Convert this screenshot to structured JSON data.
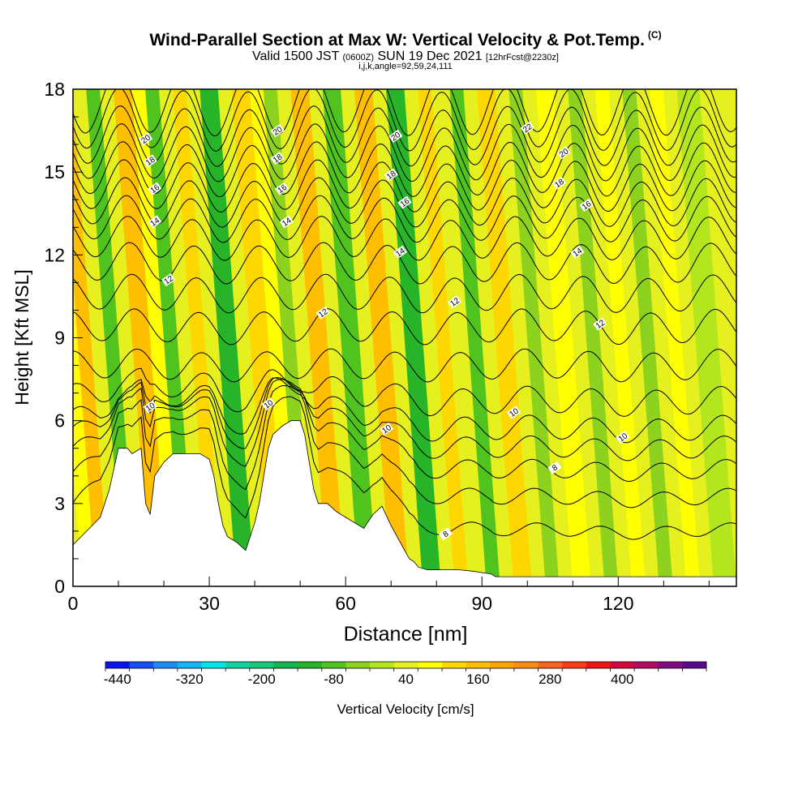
{
  "header": {
    "title": "Wind-Parallel Section at Max W: Vertical Velocity & Pot.Temp.",
    "title_corner": "(C)",
    "subtitle_prefix": "Valid 1500 JST",
    "subtitle_zulu": "(0600Z)",
    "subtitle_date": "SUN 19 Dec 2021",
    "subtitle_forecast": "[12hrFcst@2230z]",
    "params": "i,j,k,angle=92,59,24,111"
  },
  "chart_data": {
    "type": "heatmap",
    "xlabel": "Distance [nm]",
    "ylabel": "Height [Kft MSL]",
    "xlim": [
      0,
      146
    ],
    "ylim": [
      0,
      18
    ],
    "x_ticks": [
      0,
      30,
      60,
      90,
      120
    ],
    "y_ticks": [
      0,
      3,
      6,
      9,
      12,
      15,
      18
    ],
    "colorbar": {
      "label": "Vertical Velocity [cm/s]",
      "tick_labels": [
        "-440",
        "-320",
        "-200",
        "-80",
        "40",
        "160",
        "280",
        "400"
      ],
      "colors": [
        "#0a14f0",
        "#1450f5",
        "#1e8cf5",
        "#14b4f5",
        "#00e6e6",
        "#14d2a0",
        "#14c878",
        "#14b450",
        "#28b428",
        "#50c31e",
        "#8cd21e",
        "#b4e61e",
        "#e6f01e",
        "#ffff00",
        "#ffd700",
        "#ffbe00",
        "#ffa500",
        "#ff8c14",
        "#ff641e",
        "#ff3c14",
        "#f01414",
        "#d20a3c",
        "#b40a64",
        "#820a82",
        "#5a0a8c"
      ]
    },
    "velocity_bands": [
      {
        "x_from": 0,
        "x_to": 3,
        "value": 40
      },
      {
        "x_from": 3,
        "x_to": 6,
        "value": 70
      },
      {
        "x_from": 6,
        "x_to": 9,
        "value": 130
      },
      {
        "x_from": 9,
        "x_to": 12,
        "value": 10
      },
      {
        "x_from": 12,
        "x_to": 15,
        "value": -90
      },
      {
        "x_from": 15,
        "x_to": 18,
        "value": 40
      },
      {
        "x_from": 18,
        "x_to": 22,
        "value": 160
      },
      {
        "x_from": 22,
        "x_to": 25,
        "value": 60
      },
      {
        "x_from": 25,
        "x_to": 28,
        "value": -100
      },
      {
        "x_from": 28,
        "x_to": 31,
        "value": 30
      },
      {
        "x_from": 31,
        "x_to": 34,
        "value": 100
      },
      {
        "x_from": 34,
        "x_to": 37,
        "value": 40
      },
      {
        "x_from": 37,
        "x_to": 41,
        "value": -120
      },
      {
        "x_from": 41,
        "x_to": 44,
        "value": 30
      },
      {
        "x_from": 44,
        "x_to": 48,
        "value": 120
      },
      {
        "x_from": 48,
        "x_to": 51,
        "value": 50
      },
      {
        "x_from": 51,
        "x_to": 54,
        "value": -60
      },
      {
        "x_from": 54,
        "x_to": 57,
        "value": 40
      },
      {
        "x_from": 57,
        "x_to": 61,
        "value": 150
      },
      {
        "x_from": 61,
        "x_to": 64,
        "value": 40
      },
      {
        "x_from": 64,
        "x_to": 68,
        "value": -110
      },
      {
        "x_from": 68,
        "x_to": 71,
        "value": 20
      },
      {
        "x_from": 71,
        "x_to": 75,
        "value": 140
      },
      {
        "x_from": 75,
        "x_to": 78,
        "value": 30
      },
      {
        "x_from": 78,
        "x_to": 82,
        "value": -130
      },
      {
        "x_from": 82,
        "x_to": 85,
        "value": 20
      },
      {
        "x_from": 85,
        "x_to": 88,
        "value": 90
      },
      {
        "x_from": 88,
        "x_to": 92,
        "value": 20
      },
      {
        "x_from": 92,
        "x_to": 95,
        "value": -90
      },
      {
        "x_from": 95,
        "x_to": 98,
        "value": 10
      },
      {
        "x_from": 98,
        "x_to": 102,
        "value": 100
      },
      {
        "x_from": 102,
        "x_to": 105,
        "value": 20
      },
      {
        "x_from": 105,
        "x_to": 108,
        "value": -70
      },
      {
        "x_from": 108,
        "x_to": 111,
        "value": 20
      },
      {
        "x_from": 111,
        "x_to": 115,
        "value": 80
      },
      {
        "x_from": 115,
        "x_to": 118,
        "value": 20
      },
      {
        "x_from": 118,
        "x_to": 121,
        "value": -40
      },
      {
        "x_from": 121,
        "x_to": 124,
        "value": 30
      },
      {
        "x_from": 124,
        "x_to": 127,
        "value": 60
      },
      {
        "x_from": 127,
        "x_to": 130,
        "value": 10
      },
      {
        "x_from": 130,
        "x_to": 133,
        "value": -50
      },
      {
        "x_from": 133,
        "x_to": 136,
        "value": 30
      },
      {
        "x_from": 136,
        "x_to": 139,
        "value": 50
      },
      {
        "x_from": 139,
        "x_to": 142,
        "value": 10
      },
      {
        "x_from": 142,
        "x_to": 146,
        "value": -30
      }
    ],
    "terrain": {
      "x": [
        0,
        3,
        6,
        8,
        10,
        12,
        13,
        15,
        16,
        17,
        18,
        20,
        22,
        24,
        26,
        28,
        30,
        31,
        32,
        33,
        34,
        36,
        38,
        40,
        41,
        42,
        43,
        44,
        46,
        48,
        50,
        51,
        52,
        53,
        54,
        56,
        58,
        60,
        62,
        64,
        66,
        68,
        70,
        72,
        74,
        75,
        76,
        78,
        80,
        82,
        85,
        88,
        90,
        92,
        93,
        94,
        96,
        100,
        110,
        120,
        130,
        140,
        146
      ],
      "y": [
        1.5,
        2.0,
        2.5,
        3.5,
        5.0,
        5.0,
        4.8,
        5.0,
        3.0,
        2.6,
        4.0,
        4.5,
        4.8,
        4.8,
        4.8,
        4.8,
        4.6,
        4.0,
        3.0,
        2.2,
        1.8,
        1.6,
        1.3,
        2.3,
        3.0,
        4.0,
        5.0,
        5.5,
        5.8,
        6.0,
        6.0,
        5.5,
        4.5,
        3.5,
        3.0,
        3.0,
        2.7,
        2.5,
        2.3,
        2.1,
        2.6,
        2.9,
        2.2,
        1.6,
        1.0,
        0.9,
        0.7,
        0.6,
        0.6,
        0.6,
        0.6,
        0.55,
        0.5,
        0.45,
        0.35,
        0.35,
        0.35,
        0.35,
        0.35,
        0.35,
        0.35,
        0.35,
        0.35
      ]
    },
    "theta_contour_bases": [
      2.0,
      3.2,
      4.2,
      5.0,
      5.7,
      6.7,
      8.0,
      9.4,
      10.6,
      11.7,
      12.6,
      13.3,
      13.9,
      14.5,
      15.1,
      15.7,
      16.3,
      16.9,
      17.5
    ],
    "contour_labels": [
      {
        "text": "20",
        "x": 16,
        "y": 16.2
      },
      {
        "text": "18",
        "x": 17,
        "y": 15.4
      },
      {
        "text": "16",
        "x": 18,
        "y": 14.4
      },
      {
        "text": "14",
        "x": 18,
        "y": 13.2
      },
      {
        "text": "12",
        "x": 21,
        "y": 11.1
      },
      {
        "text": "10",
        "x": 17,
        "y": 6.5
      },
      {
        "text": "20",
        "x": 45,
        "y": 16.5
      },
      {
        "text": "18",
        "x": 45,
        "y": 15.5
      },
      {
        "text": "16",
        "x": 46,
        "y": 14.4
      },
      {
        "text": "14",
        "x": 47,
        "y": 13.2
      },
      {
        "text": "12",
        "x": 55,
        "y": 9.9
      },
      {
        "text": "10",
        "x": 43,
        "y": 6.6
      },
      {
        "text": "20",
        "x": 71,
        "y": 16.3
      },
      {
        "text": "18",
        "x": 70,
        "y": 14.9
      },
      {
        "text": "16",
        "x": 73,
        "y": 13.9
      },
      {
        "text": "14",
        "x": 72,
        "y": 12.1
      },
      {
        "text": "12",
        "x": 84,
        "y": 10.3
      },
      {
        "text": "10",
        "x": 69,
        "y": 5.7
      },
      {
        "text": "8",
        "x": 82,
        "y": 1.9
      },
      {
        "text": "22",
        "x": 100,
        "y": 16.6
      },
      {
        "text": "20",
        "x": 108,
        "y": 15.7
      },
      {
        "text": "18",
        "x": 107,
        "y": 14.6
      },
      {
        "text": "16",
        "x": 113,
        "y": 13.8
      },
      {
        "text": "14",
        "x": 111,
        "y": 12.1
      },
      {
        "text": "12",
        "x": 116,
        "y": 9.5
      },
      {
        "text": "10",
        "x": 97,
        "y": 6.3
      },
      {
        "text": "10",
        "x": 121,
        "y": 5.4
      },
      {
        "text": "8",
        "x": 106,
        "y": 4.3
      }
    ]
  }
}
